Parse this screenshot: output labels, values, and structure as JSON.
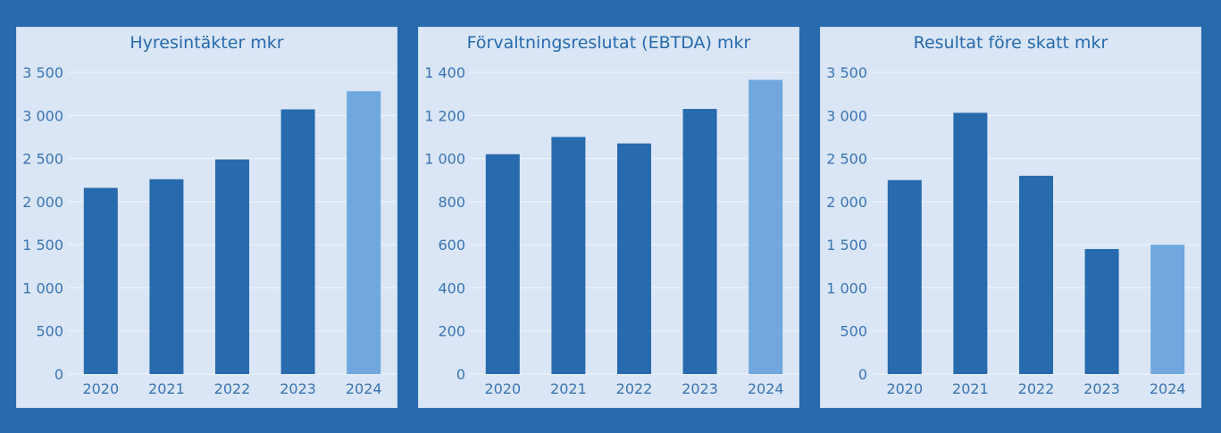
{
  "colors": {
    "background": "#276aad",
    "panel": "#dae6f5",
    "bar": "#276aad",
    "bar_highlight": "#6fa7de",
    "grid": "#f2f6fb",
    "text": "#276aad"
  },
  "chart_data": [
    {
      "type": "bar",
      "title": "Hyresintäkter mkr",
      "categories": [
        "2020",
        "2021",
        "2022",
        "2023",
        "2024"
      ],
      "values": [
        2160,
        2260,
        2490,
        3070,
        3280
      ],
      "highlight_index": 4,
      "ylim": [
        0,
        3500
      ],
      "yticks": [
        0,
        500,
        1000,
        1500,
        2000,
        2500,
        3000,
        3500
      ],
      "ytick_labels": [
        "0",
        "500",
        "1 000",
        "1 500",
        "2 000",
        "2 500",
        "3 000",
        "3 500"
      ],
      "grid": true
    },
    {
      "type": "bar",
      "title": "Förvaltningsreslutat (EBTDA) mkr",
      "categories": [
        "2020",
        "2021",
        "2022",
        "2023",
        "2024"
      ],
      "values": [
        1020,
        1100,
        1070,
        1230,
        1365
      ],
      "highlight_index": 4,
      "ylim": [
        0,
        1400
      ],
      "yticks": [
        0,
        200,
        400,
        600,
        800,
        1000,
        1200,
        1400
      ],
      "ytick_labels": [
        "0",
        "200",
        "400",
        "600",
        "800",
        "1 000",
        "1 200",
        "1 400"
      ],
      "grid": true
    },
    {
      "type": "bar",
      "title": "Resultat före skatt mkr",
      "categories": [
        "2020",
        "2021",
        "2022",
        "2023",
        "2024"
      ],
      "values": [
        2250,
        3030,
        2300,
        1450,
        1500
      ],
      "highlight_index": 4,
      "ylim": [
        0,
        3500
      ],
      "yticks": [
        0,
        500,
        1000,
        1500,
        2000,
        2500,
        3000,
        3500
      ],
      "ytick_labels": [
        "0",
        "500",
        "1 000",
        "1 500",
        "2 000",
        "2 500",
        "3 000",
        "3 500"
      ],
      "grid": true
    }
  ]
}
